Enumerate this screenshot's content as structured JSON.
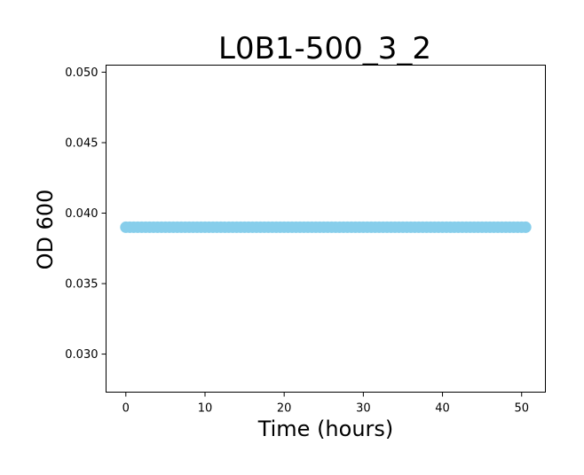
{
  "chart_data": {
    "type": "scatter",
    "title": "L0B1-500_3_2",
    "xlabel": "Time (hours)",
    "ylabel": "OD 600",
    "xlim": [
      -2.5,
      53.0
    ],
    "ylim": [
      0.0273,
      0.0505
    ],
    "xticks": [
      0,
      10,
      20,
      30,
      40,
      50
    ],
    "yticks": [
      0.03,
      0.035,
      0.04,
      0.045,
      0.05
    ],
    "ytick_labels": [
      "0.030",
      "0.035",
      "0.040",
      "0.045",
      "0.050"
    ],
    "grid": false,
    "legend": "none",
    "marker_color": "#87CEEB",
    "series": [
      {
        "x": [
          0,
          0.5,
          1,
          1.5,
          2,
          2.5,
          3,
          3.5,
          4,
          4.5,
          5,
          5.5,
          6,
          6.5,
          7,
          7.5,
          8,
          8.5,
          9,
          9.5,
          10,
          10.5,
          11,
          11.5,
          12,
          12.5,
          13,
          13.5,
          14,
          14.5,
          15,
          15.5,
          16,
          16.5,
          17,
          17.5,
          18,
          18.5,
          19,
          19.5,
          20,
          20.5,
          21,
          21.5,
          22,
          22.5,
          23,
          23.5,
          24,
          24.5,
          25,
          25.5,
          26,
          26.5,
          27,
          27.5,
          28,
          28.5,
          29,
          29.5,
          30,
          30.5,
          31,
          31.5,
          32,
          32.5,
          33,
          33.5,
          34,
          34.5,
          35,
          35.5,
          36,
          36.5,
          37,
          37.5,
          38,
          38.5,
          39,
          39.5,
          40,
          40.5,
          41,
          41.5,
          42,
          42.5,
          43,
          43.5,
          44,
          44.5,
          45,
          45.5,
          46,
          46.5,
          47,
          47.5,
          48,
          48.5,
          49,
          49.5,
          50,
          50.5
        ],
        "y": [
          0.039,
          0.039,
          0.039,
          0.039,
          0.039,
          0.039,
          0.039,
          0.039,
          0.039,
          0.039,
          0.039,
          0.039,
          0.039,
          0.039,
          0.039,
          0.039,
          0.039,
          0.039,
          0.039,
          0.039,
          0.039,
          0.039,
          0.039,
          0.039,
          0.039,
          0.039,
          0.039,
          0.039,
          0.039,
          0.039,
          0.039,
          0.039,
          0.039,
          0.039,
          0.039,
          0.039,
          0.039,
          0.039,
          0.039,
          0.039,
          0.039,
          0.039,
          0.039,
          0.039,
          0.039,
          0.039,
          0.039,
          0.039,
          0.039,
          0.039,
          0.039,
          0.039,
          0.039,
          0.039,
          0.039,
          0.039,
          0.039,
          0.039,
          0.039,
          0.039,
          0.039,
          0.039,
          0.039,
          0.039,
          0.039,
          0.039,
          0.039,
          0.039,
          0.039,
          0.039,
          0.039,
          0.039,
          0.039,
          0.039,
          0.039,
          0.039,
          0.039,
          0.039,
          0.039,
          0.039,
          0.039,
          0.039,
          0.039,
          0.039,
          0.039,
          0.039,
          0.039,
          0.039,
          0.039,
          0.039,
          0.039,
          0.039,
          0.039,
          0.039,
          0.039,
          0.039,
          0.039,
          0.039,
          0.039,
          0.039,
          0.039,
          0.039
        ]
      }
    ]
  }
}
